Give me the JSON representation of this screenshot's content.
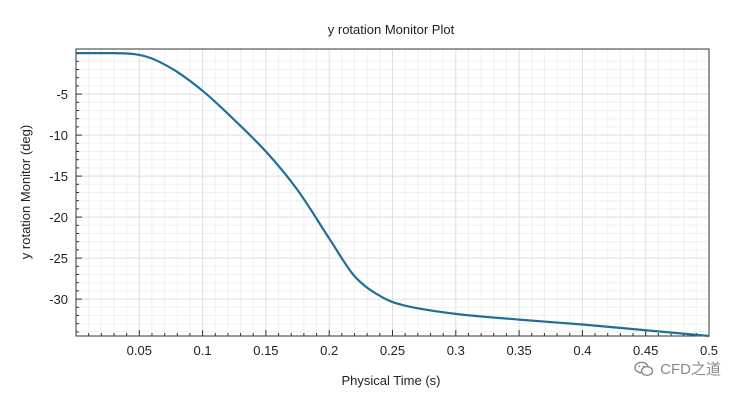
{
  "chart_data": {
    "type": "line",
    "title": "y rotation Monitor Plot",
    "xlabel": "Physical Time (s)",
    "ylabel": "y rotation Monitor (deg)",
    "xlim": [
      0,
      0.5
    ],
    "ylim": [
      -34.5,
      0.5
    ],
    "grid": true,
    "xticks": [
      0.05,
      0.1,
      0.15,
      0.2,
      0.25,
      0.3,
      0.35,
      0.4,
      0.45,
      0.5
    ],
    "xtick_labels": [
      "0.05",
      "0.1",
      "0.15",
      "0.2",
      "0.25",
      "0.3",
      "0.35",
      "0.4",
      "0.45",
      "0.5"
    ],
    "yticks": [
      -5,
      -10,
      -15,
      -20,
      -25,
      -30
    ],
    "ytick_labels": [
      "-5",
      "-10",
      "-15",
      "-20",
      "-25",
      "-30"
    ],
    "series": [
      {
        "name": "y rotation Monitor",
        "color": "#1f6f98",
        "x": [
          0,
          0.03,
          0.045,
          0.055,
          0.065,
          0.08,
          0.1,
          0.12,
          0.15,
          0.175,
          0.2,
          0.22,
          0.24,
          0.26,
          0.3,
          0.35,
          0.4,
          0.45,
          0.5
        ],
        "y": [
          0,
          0,
          -0.1,
          -0.4,
          -1,
          -2.3,
          -4.6,
          -7.4,
          -12,
          -16.7,
          -22.6,
          -27.2,
          -29.6,
          -30.8,
          -31.8,
          -32.5,
          -33.1,
          -33.8,
          -34.5
        ]
      }
    ]
  },
  "watermark": {
    "text": "CFD之道",
    "icon": "wechat-icon"
  }
}
